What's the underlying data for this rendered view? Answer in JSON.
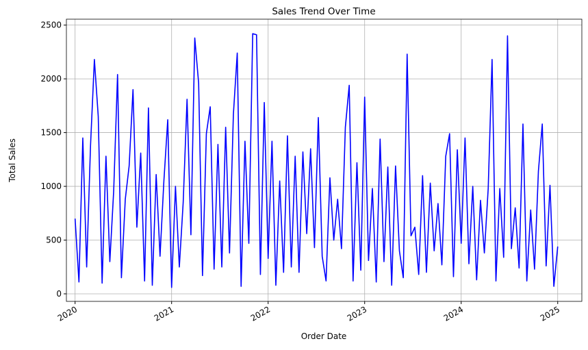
{
  "chart_data": {
    "type": "line",
    "title": "Sales Trend Over Time",
    "x_label": "Order Date",
    "y_label": "Total Sales",
    "x": [
      2020,
      2020.04,
      2020.08,
      2020.12,
      2020.16,
      2020.2,
      2020.24,
      2020.28,
      2020.32,
      2020.36,
      2020.4,
      2020.44,
      2020.48,
      2020.52,
      2020.56,
      2020.6,
      2020.64,
      2020.68,
      2020.72,
      2020.76,
      2020.8,
      2020.84,
      2020.88,
      2020.92,
      2020.96,
      2021,
      2021.04,
      2021.08,
      2021.12,
      2021.16,
      2021.2,
      2021.24,
      2021.28,
      2021.32,
      2021.36,
      2021.4,
      2021.44,
      2021.48,
      2021.52,
      2021.56,
      2021.6,
      2021.64,
      2021.68,
      2021.72,
      2021.76,
      2021.8,
      2021.84,
      2021.88,
      2021.92,
      2021.96,
      2022,
      2022.04,
      2022.08,
      2022.12,
      2022.16,
      2022.2,
      2022.24,
      2022.28,
      2022.32,
      2022.36,
      2022.4,
      2022.44,
      2022.48,
      2022.52,
      2022.56,
      2022.6,
      2022.64,
      2022.68,
      2022.72,
      2022.76,
      2022.8,
      2022.84,
      2022.88,
      2022.92,
      2022.96,
      2023,
      2023.04,
      2023.08,
      2023.12,
      2023.16,
      2023.2,
      2023.24,
      2023.28,
      2023.32,
      2023.36,
      2023.4,
      2023.44,
      2023.48,
      2023.52,
      2023.56,
      2023.6,
      2023.64,
      2023.68,
      2023.72,
      2023.76,
      2023.8,
      2023.84,
      2023.88,
      2023.92,
      2023.96,
      2024,
      2024.04,
      2024.08,
      2024.12,
      2024.16,
      2024.2,
      2024.24,
      2024.28,
      2024.32,
      2024.36,
      2024.4,
      2024.44,
      2024.48,
      2024.52,
      2024.56,
      2024.6,
      2024.64,
      2024.68,
      2024.72,
      2024.76,
      2024.8,
      2024.84,
      2024.88,
      2024.92,
      2024.96,
      2025
    ],
    "series": [
      {
        "name": "Total Sales",
        "color": "#0000ff",
        "values": [
          700,
          110,
          1450,
          250,
          1380,
          2180,
          1650,
          100,
          1280,
          300,
          960,
          2040,
          150,
          880,
          1190,
          1900,
          620,
          1310,
          120,
          1730,
          80,
          1110,
          350,
          1050,
          1620,
          60,
          1000,
          250,
          850,
          1810,
          550,
          2380,
          1960,
          170,
          1490,
          1740,
          230,
          1390,
          250,
          1550,
          380,
          1670,
          2240,
          70,
          1420,
          470,
          2420,
          2410,
          180,
          1780,
          330,
          1420,
          80,
          1050,
          200,
          1470,
          250,
          1280,
          200,
          1320,
          560,
          1350,
          430,
          1640,
          350,
          120,
          1080,
          500,
          880,
          420,
          1550,
          1940,
          120,
          1220,
          220,
          1830,
          310,
          980,
          110,
          1440,
          300,
          1180,
          80,
          1190,
          400,
          150,
          2230,
          540,
          620,
          180,
          1100,
          200,
          1030,
          400,
          840,
          270,
          1280,
          1490,
          160,
          1340,
          470,
          1450,
          280,
          1000,
          130,
          870,
          380,
          980,
          2180,
          120,
          980,
          340,
          2400,
          420,
          800,
          240,
          1580,
          120,
          780,
          230,
          1140,
          1580,
          260,
          1010,
          70,
          440
        ]
      }
    ],
    "xlim": [
      2019.91,
      2025.25
    ],
    "xticks": [
      2020,
      2021,
      2022,
      2023,
      2024,
      2025
    ],
    "ylim": [
      -70,
      2555
    ],
    "yticks": [
      0,
      500,
      1000,
      1500,
      2000,
      2500
    ],
    "grid": true
  }
}
